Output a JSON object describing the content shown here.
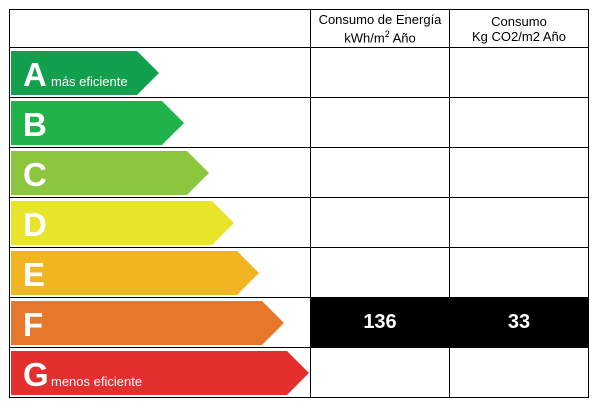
{
  "headers": {
    "label": "",
    "energy_line1": "Consumo de Energía",
    "energy_line2_prefix": "kWh/m",
    "energy_line2_sup": "2",
    "energy_line2_suffix": " Año",
    "co2_line1": "Consumo",
    "co2_line2": "Kg CO2/m2 Año"
  },
  "bands": [
    {
      "letter": "A",
      "note": "más eficiente",
      "color": "#12a04e",
      "energy": "",
      "co2": ""
    },
    {
      "letter": "B",
      "note": "",
      "color": "#22b24c",
      "energy": "",
      "co2": ""
    },
    {
      "letter": "C",
      "note": "",
      "color": "#8cc63f",
      "energy": "",
      "co2": ""
    },
    {
      "letter": "D",
      "note": "",
      "color": "#e7e42a",
      "energy": "",
      "co2": ""
    },
    {
      "letter": "E",
      "note": "",
      "color": "#f0b521",
      "energy": "",
      "co2": ""
    },
    {
      "letter": "F",
      "note": "",
      "color": "#e5782b",
      "energy": "136",
      "co2": "33"
    },
    {
      "letter": "G",
      "note": "menos eficiente",
      "color": "#e3302f",
      "energy": "",
      "co2": ""
    }
  ],
  "selected_band": "F"
}
